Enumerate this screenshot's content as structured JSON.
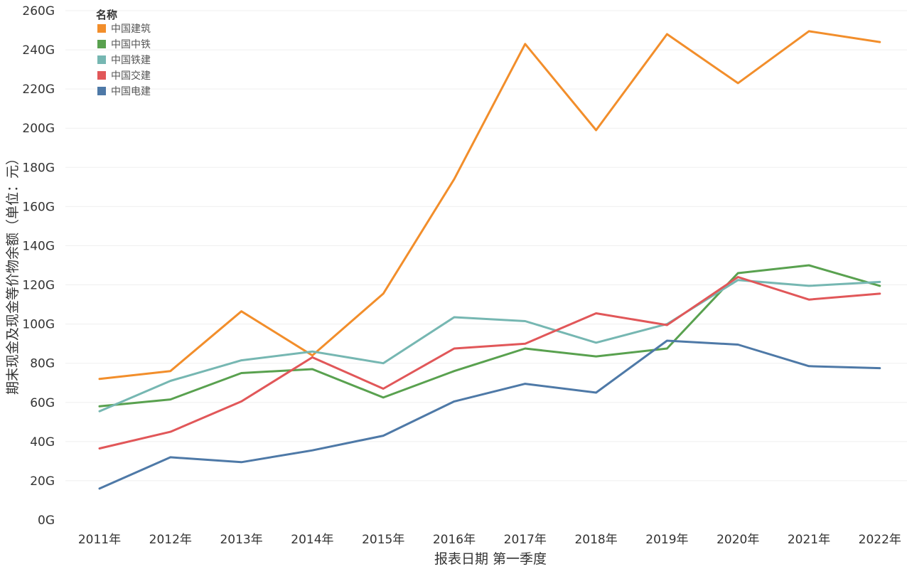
{
  "chart_data": {
    "type": "line",
    "title": "",
    "xlabel": "报表日期 第一季度",
    "ylabel": "期末现金及现金等价物余额（单位：元）",
    "ylim": [
      0,
      260
    ],
    "y_unit_suffix": "G",
    "y_ticks": [
      0,
      20,
      40,
      60,
      80,
      100,
      120,
      140,
      160,
      180,
      200,
      220,
      240,
      260
    ],
    "grid": true,
    "legend_title": "名称",
    "legend_position": "top-left",
    "categories": [
      "2011年",
      "2012年",
      "2013年",
      "2014年",
      "2015年",
      "2016年",
      "2017年",
      "2018年",
      "2019年",
      "2020年",
      "2021年",
      "2022年"
    ],
    "series": [
      {
        "name": "中国建筑",
        "color": "#F28E2B",
        "values": [
          72,
          76,
          106.5,
          84,
          115.5,
          174,
          243,
          199,
          248,
          223,
          249.5,
          244
        ]
      },
      {
        "name": "中国中铁",
        "color": "#59A14F",
        "values": [
          58,
          61.5,
          75,
          77,
          62.5,
          76,
          87.5,
          83.5,
          87.5,
          126,
          130,
          119.5
        ]
      },
      {
        "name": "中国铁建",
        "color": "#76B7B2",
        "values": [
          55.5,
          71,
          81.5,
          86,
          80,
          103.5,
          101.5,
          90.5,
          100,
          122.5,
          119.5,
          121.5
        ]
      },
      {
        "name": "中国交建",
        "color": "#E15759",
        "values": [
          36.5,
          45,
          60.5,
          83,
          67,
          87.5,
          90,
          105.5,
          99.5,
          124,
          112.5,
          115.5
        ]
      },
      {
        "name": "中国电建",
        "color": "#4E79A7",
        "values": [
          16,
          32,
          29.5,
          35.5,
          43,
          60.5,
          69.5,
          65,
          91.5,
          89.5,
          78.5,
          77.5
        ]
      }
    ]
  }
}
